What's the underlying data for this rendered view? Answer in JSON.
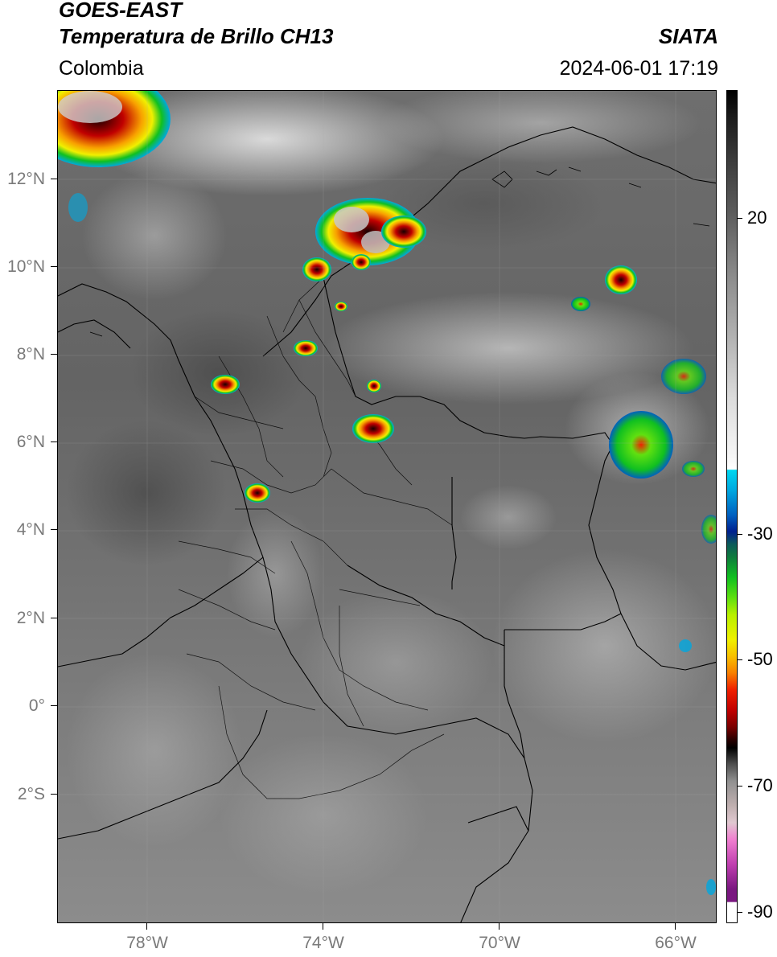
{
  "header": {
    "satellite": "GOES-EAST",
    "product": "Temperatura de Brillo CH13",
    "region": "Colombia",
    "agency": "SIATA",
    "datetime": "2024-06-01 17:19"
  },
  "map": {
    "lat_labels": [
      "12°N",
      "10°N",
      "8°N",
      "6°N",
      "4°N",
      "2°N",
      "0°",
      "2°S"
    ],
    "lon_labels": [
      "78°W",
      "74°W",
      "70°W",
      "66°W"
    ]
  },
  "colorbar": {
    "labels": [
      "20",
      "-30",
      "-50",
      "-70",
      "-90"
    ],
    "palette": {
      "cold_black": "#000000",
      "cyan": "#00d7f0",
      "blue": "#00208f",
      "green": "#10c020",
      "yellow": "#f0f000",
      "red": "#f02000",
      "magenta": "#c040b0"
    }
  }
}
